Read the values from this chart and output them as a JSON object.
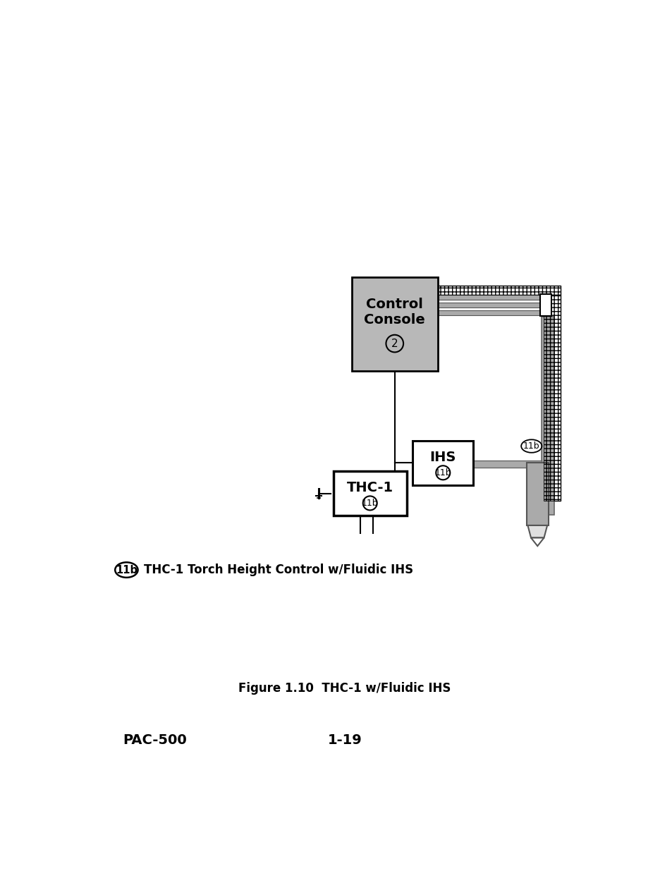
{
  "title": "Figure 1.10  THC-1 w/Fluidic IHS",
  "footer_left": "PAC-500",
  "footer_center": "1-19",
  "legend_symbol": "11b",
  "legend_text": "THC-1 Torch Height Control w/Fluidic IHS",
  "control_console_label": "Control\nConsole",
  "control_console_symbol": "2",
  "thc1_label": "THC-1",
  "ihs_label": "IHS",
  "symbol_11b": "11b",
  "bg_color": "#ffffff",
  "box_fill_control": "#b8b8b8",
  "gray_cable": "#aaaaaa",
  "gray_light": "#cccccc"
}
